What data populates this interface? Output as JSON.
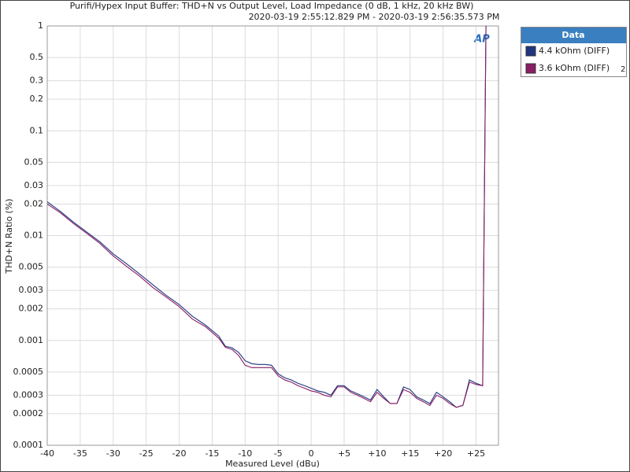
{
  "chart_data": {
    "type": "line",
    "title": "Purifi/Hypex Input Buffer: THD+N vs Output Level, Load Impedance (0 dB, 1 kHz, 20 kHz BW)",
    "subtitle": "2020-03-19 2:55:12.829 PM - 2020-03-19 2:56:35.573 PM",
    "x_label": "Measured Level (dBu)",
    "y_label": "THD+N Ratio (%)",
    "logo": "AP",
    "legend_title": "Data",
    "legend_badge": "2",
    "legend": "outside-right",
    "grid": true,
    "y_log": true,
    "xlim": [
      -40,
      28.4
    ],
    "ylim": [
      0.0001,
      1
    ],
    "xticks": [
      -40,
      -35,
      -30,
      -25,
      -20,
      -15,
      -10,
      -5,
      0,
      {
        "value": 5,
        "label": "+5"
      },
      {
        "value": 10,
        "label": "+10"
      },
      {
        "value": 15,
        "label": "+15"
      },
      {
        "value": 20,
        "label": "+20"
      },
      {
        "value": 25,
        "label": "+25"
      }
    ],
    "yticks": [
      1,
      0.5,
      0.3,
      0.2,
      0.1,
      0.05,
      0.03,
      0.02,
      0.01,
      0.005,
      0.003,
      0.002,
      0.001,
      0.0005,
      0.0003,
      0.0002,
      0.0001
    ],
    "x": [
      -40,
      -38,
      -36,
      -34,
      -32,
      -30,
      -28,
      -26,
      -24,
      -22,
      -20,
      -18,
      -16,
      -14,
      -13,
      -12,
      -11,
      -10,
      -9,
      -8,
      -7,
      -6,
      -5,
      -4,
      -3,
      -2,
      -1,
      0,
      1,
      2,
      3,
      4,
      5,
      6,
      7,
      8,
      9,
      10,
      11,
      12,
      13,
      14,
      15,
      16,
      17,
      18,
      19,
      20,
      21,
      22,
      23,
      24,
      25,
      26,
      26.5
    ],
    "series": [
      {
        "name": "4.4 kOhm (DIFF)",
        "color": "#1f3580",
        "values": [
          0.021,
          0.017,
          0.0134,
          0.0108,
          0.0087,
          0.0067,
          0.0054,
          0.0043,
          0.0034,
          0.0027,
          0.0022,
          0.0017,
          0.0014,
          0.0011,
          0.00088,
          0.00085,
          0.00077,
          0.00064,
          0.0006,
          0.00059,
          0.00059,
          0.00058,
          0.00048,
          0.00044,
          0.00042,
          0.00039,
          0.00037,
          0.00035,
          0.00033,
          0.00032,
          0.0003,
          0.00037,
          0.00037,
          0.00033,
          0.00031,
          0.00029,
          0.00027,
          0.00034,
          0.00029,
          0.00025,
          0.00025,
          0.00036,
          0.00034,
          0.00029,
          0.00027,
          0.00025,
          0.00032,
          0.00029,
          0.00026,
          0.00023,
          0.00024,
          0.00042,
          0.00039,
          0.00037,
          1
        ]
      },
      {
        "name": "3.6 kOhm (DIFF)",
        "color": "#8a1f63",
        "values": [
          0.02,
          0.0165,
          0.013,
          0.0105,
          0.0084,
          0.0064,
          0.0051,
          0.0041,
          0.0032,
          0.0026,
          0.0021,
          0.0016,
          0.00135,
          0.00105,
          0.00086,
          0.00082,
          0.00072,
          0.00058,
          0.00055,
          0.00055,
          0.00055,
          0.00055,
          0.00046,
          0.00042,
          0.0004,
          0.00037,
          0.00035,
          0.00033,
          0.00032,
          0.0003,
          0.00029,
          0.00036,
          0.00036,
          0.00032,
          0.0003,
          0.00028,
          0.00026,
          0.00032,
          0.00028,
          0.00025,
          0.00025,
          0.00034,
          0.00032,
          0.00028,
          0.00026,
          0.00024,
          0.0003,
          0.00028,
          0.00025,
          0.00023,
          0.00024,
          0.0004,
          0.00038,
          0.00037,
          1
        ]
      }
    ]
  }
}
